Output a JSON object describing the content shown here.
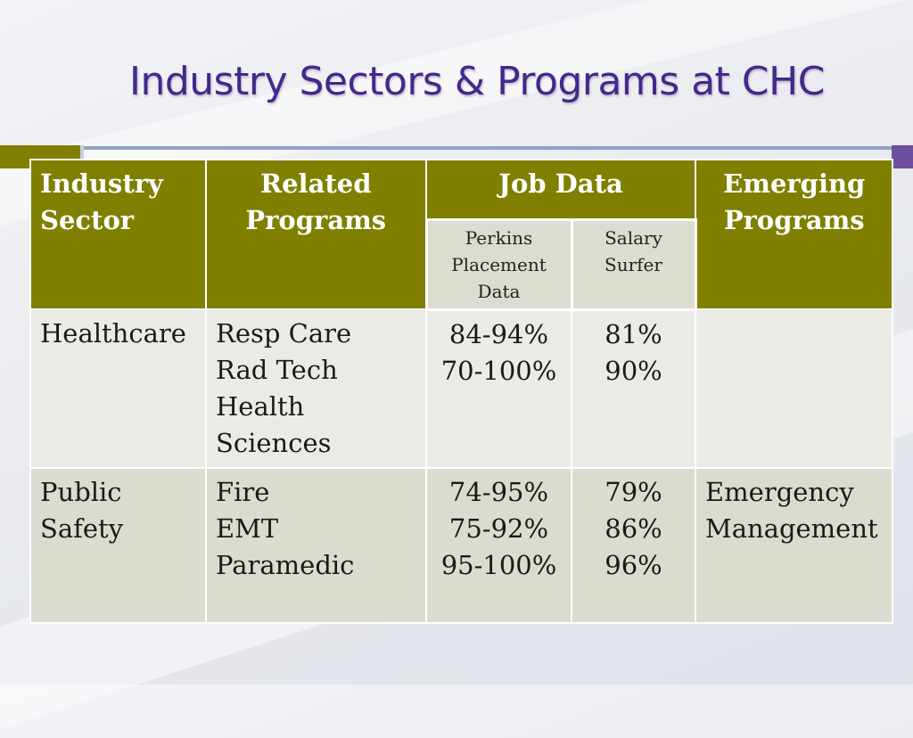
{
  "slide": {
    "title": "Industry Sectors & Programs at CHC"
  },
  "table": {
    "headers": {
      "industry_sector": [
        "Industry",
        "Sector"
      ],
      "related_programs": [
        "Related",
        "Programs"
      ],
      "job_data": "Job Data",
      "emerging_programs": [
        "Emerging",
        "Programs"
      ]
    },
    "subheaders": {
      "perkins": [
        "Perkins",
        "Placement",
        "Data"
      ],
      "salary_surfer": [
        "Salary",
        "Surfer"
      ]
    },
    "rows": [
      {
        "sector": [
          "Healthcare"
        ],
        "programs": [
          "Resp Care",
          "Rad Tech",
          "Health",
          "Sciences"
        ],
        "perkins": [
          "84-94%",
          "70-100%"
        ],
        "salary": [
          "81%",
          "90%"
        ],
        "emerging": []
      },
      {
        "sector": [
          "Public",
          "Safety"
        ],
        "programs": [
          "Fire",
          "EMT",
          "Paramedic"
        ],
        "perkins": [
          "74-95%",
          "75-92%",
          "95-100%"
        ],
        "salary": [
          "79%",
          "86%",
          "96%"
        ],
        "emerging": [
          "Emergency",
          "Management"
        ]
      }
    ]
  }
}
